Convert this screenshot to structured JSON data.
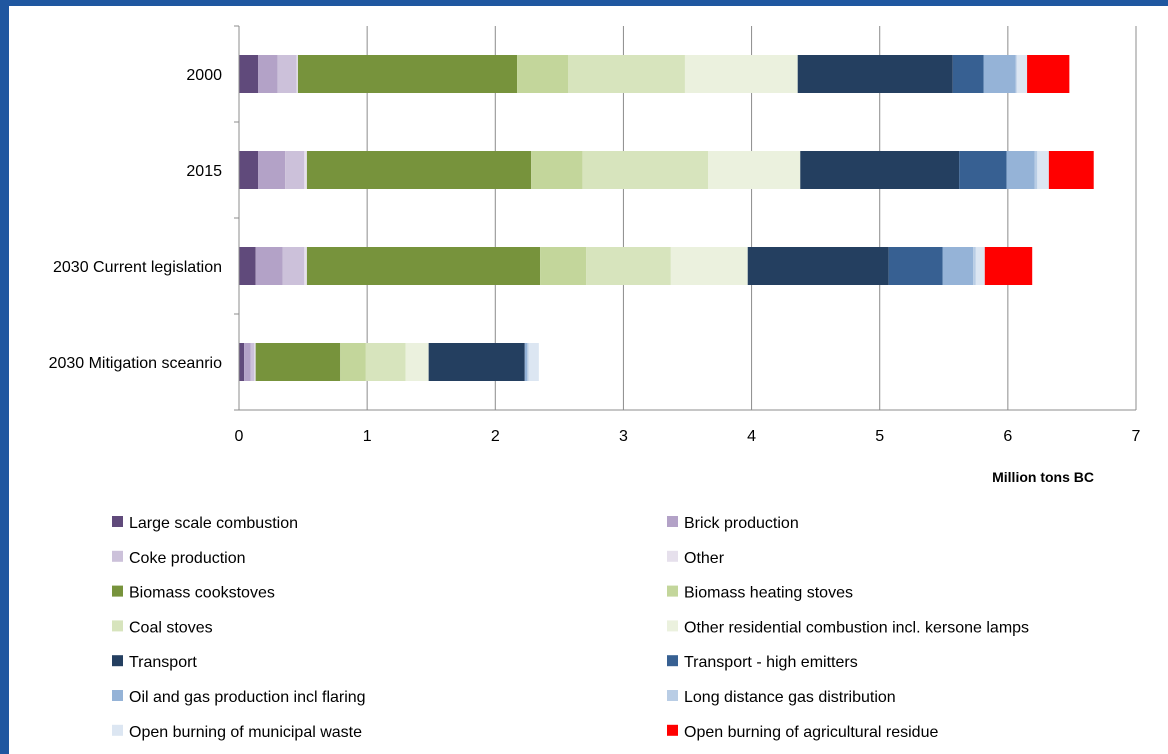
{
  "chart_data": {
    "type": "bar",
    "orientation": "horizontal",
    "stacked": true,
    "categories": [
      "2000",
      "2015",
      "2030 Current legislation",
      "2030 Mitigation sceanrio"
    ],
    "xlabel": "Million tons BC",
    "xlim": [
      0,
      7
    ],
    "xticks": [
      0,
      1,
      2,
      3,
      4,
      5,
      6,
      7
    ],
    "grid": "vertical",
    "legend_position": "bottom",
    "series": [
      {
        "name": "Large scale combustion",
        "color": "#604a7b",
        "values": [
          0.15,
          0.15,
          0.13,
          0.04
        ]
      },
      {
        "name": "Brick production",
        "color": "#b3a2c7",
        "values": [
          0.15,
          0.21,
          0.21,
          0.05
        ]
      },
      {
        "name": "Coke production",
        "color": "#ccc1da",
        "values": [
          0.15,
          0.15,
          0.17,
          0.03
        ]
      },
      {
        "name": "Other",
        "color": "#e6e0ec",
        "values": [
          0.01,
          0.02,
          0.02,
          0.01
        ]
      },
      {
        "name": "Biomass cookstoves",
        "color": "#77933c",
        "values": [
          1.71,
          1.75,
          1.82,
          0.66
        ]
      },
      {
        "name": "Biomass heating stoves",
        "color": "#c3d69b",
        "values": [
          0.4,
          0.4,
          0.36,
          0.2
        ]
      },
      {
        "name": "Coal stoves",
        "color": "#d7e4bd",
        "values": [
          0.91,
          0.98,
          0.66,
          0.31
        ]
      },
      {
        "name": "Other residential combustion incl. kersone lamps",
        "color": "#ebf1de",
        "values": [
          0.88,
          0.72,
          0.6,
          0.18
        ]
      },
      {
        "name": "Transport",
        "color": "#243f60",
        "values": [
          1.21,
          1.24,
          1.1,
          0.75
        ]
      },
      {
        "name": "Transport - high emitters",
        "color": "#376092",
        "values": [
          0.24,
          0.37,
          0.42,
          0.0
        ]
      },
      {
        "name": "Oil and gas production incl flaring",
        "color": "#95b3d7",
        "values": [
          0.25,
          0.22,
          0.24,
          0.02
        ]
      },
      {
        "name": "Long distance gas distribution",
        "color": "#b9cde5",
        "values": [
          0.01,
          0.02,
          0.02,
          0.01
        ]
      },
      {
        "name": "Open burning of municipal waste",
        "color": "#dce6f2",
        "values": [
          0.08,
          0.09,
          0.07,
          0.08
        ]
      },
      {
        "name": "Open burning of agricultural residue",
        "color": "#ff0000",
        "values": [
          0.33,
          0.35,
          0.37,
          0.0
        ]
      }
    ]
  }
}
